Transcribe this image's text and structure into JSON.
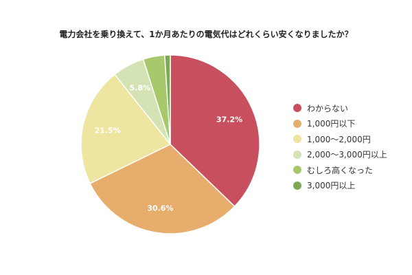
{
  "chart_data": {
    "type": "pie",
    "title": "電力会社を乗り換えて、1か月あたりの電気代はどれくらい安くなりましたか？",
    "legend_position": "right",
    "slices": [
      {
        "label": "わからない",
        "value": 37.2,
        "value_label": "37.2%",
        "color": "#c8505e"
      },
      {
        "label": "1,000円以下",
        "value": 30.6,
        "value_label": "30.6%",
        "color": "#e6ad6c"
      },
      {
        "label": "1,000〜2,000円",
        "value": 21.5,
        "value_label": "21.5%",
        "color": "#ede5a0"
      },
      {
        "label": "2,000〜3,000円以上",
        "value": 5.8,
        "value_label": "5.8%",
        "color": "#d4e3b4"
      },
      {
        "label": "むしろ高くなった",
        "value": 3.9,
        "value_label": "",
        "color": "#a8c86c"
      },
      {
        "label": "3,000円以上",
        "value": 1.0,
        "value_label": "",
        "color": "#7fa855"
      }
    ]
  }
}
